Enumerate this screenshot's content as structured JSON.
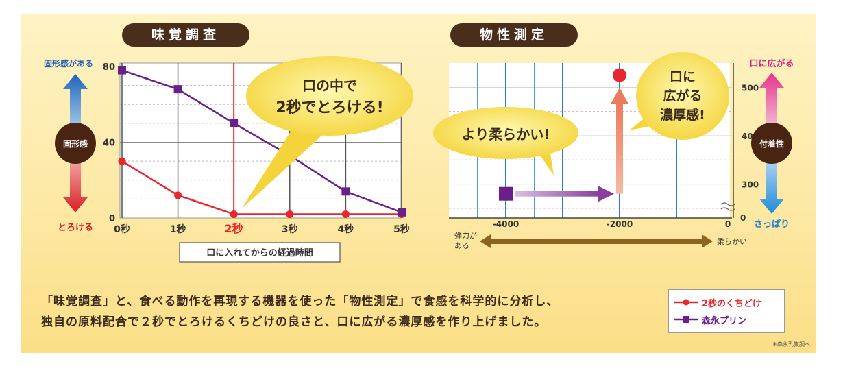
{
  "left_title": "味覚調査",
  "right_title": "物性測定",
  "summary_lines": [
    "「味覚調査」と、食べる動作を再現する機器を使った「物性測定」で食感を科学的に分析し、",
    "独自の原料配合で２秒でとろけるくちどけの良さと、口に広がる濃厚感を作り上げました。"
  ],
  "legend": [
    {
      "label": "2秒のくちどけ",
      "color": "#e8262c"
    },
    {
      "label": "森永プリン",
      "color": "#6a1f8a"
    }
  ],
  "source_note": "※森永乳業調べ",
  "colors": {
    "red": "#e8262c",
    "purple": "#6a1f8a",
    "brown": "#4a2e1c",
    "blue": "#2a7fd4",
    "pink": "#e83a8a"
  },
  "chart_data": [
    {
      "type": "line",
      "x": [
        "0秒",
        "1秒",
        "2秒",
        "3秒",
        "4秒",
        "5秒"
      ],
      "xlabel": "口に入れてからの経過時間",
      "ylim": [
        0,
        80
      ],
      "y_ticks": [
        "0",
        "40",
        "80"
      ],
      "y_axis_top_label": "固形感がある",
      "y_axis_center_label": "固形感",
      "y_axis_bottom_label": "とろける",
      "highlight_x": "2秒",
      "callout": [
        "口の中で",
        "2秒でとろける!"
      ],
      "series": [
        {
          "name": "2秒のくちどけ",
          "values": [
            30,
            12,
            2,
            2,
            2,
            2
          ]
        },
        {
          "name": "森永プリン",
          "values": [
            78,
            68,
            50,
            33,
            14,
            3
          ]
        }
      ]
    },
    {
      "type": "scatter",
      "x_ticks": [
        "-4000",
        "-2000",
        "0"
      ],
      "xlim": [
        -5000,
        0
      ],
      "y_ticks": [
        "300",
        "400",
        "500"
      ],
      "y_tick_zero": "0",
      "ylim": [
        230,
        550
      ],
      "x_axis_left_label": "弾力がある",
      "x_axis_right_label": "柔らかい",
      "y_axis_top_label": "口に広がる",
      "y_axis_center_label": "付着性",
      "y_axis_bottom_label": "さっぱり",
      "callouts": [
        [
          "より柔らかい!"
        ],
        [
          "口に",
          "広がる",
          "濃厚感!"
        ]
      ],
      "series": [
        {
          "name": "森永プリン",
          "x": -4000,
          "y": 280
        },
        {
          "name": "2秒のくちどけ",
          "x": -2000,
          "y": 525
        }
      ]
    }
  ]
}
